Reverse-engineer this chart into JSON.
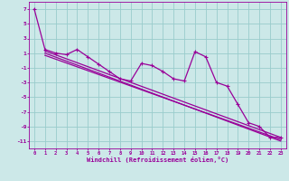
{
  "xlabel": "Windchill (Refroidissement éolien,°C)",
  "background_color": "#cce8e8",
  "grid_color": "#99cccc",
  "line_color": "#990099",
  "xlim": [
    -0.5,
    23.5
  ],
  "ylim": [
    -12,
    8
  ],
  "yticks": [
    -11,
    -9,
    -7,
    -5,
    -3,
    -1,
    1,
    3,
    5,
    7
  ],
  "xticks": [
    0,
    1,
    2,
    3,
    4,
    5,
    6,
    7,
    8,
    9,
    10,
    11,
    12,
    13,
    14,
    15,
    16,
    17,
    18,
    19,
    20,
    21,
    22,
    23
  ],
  "data_line": {
    "x": [
      0,
      1,
      2,
      3,
      4,
      5,
      6,
      7,
      8,
      9,
      10,
      11,
      12,
      13,
      14,
      15,
      16,
      17,
      18,
      19,
      20,
      21,
      22,
      23
    ],
    "y": [
      7.0,
      1.5,
      1.0,
      0.8,
      1.5,
      0.5,
      -0.5,
      -1.5,
      -2.5,
      -2.8,
      -0.4,
      -0.7,
      -1.5,
      -2.5,
      -2.8,
      1.2,
      0.5,
      -3.0,
      -3.5,
      -6.0,
      -8.5,
      -9.0,
      -10.5,
      -10.5
    ]
  },
  "trend_line1": {
    "x": [
      1,
      23
    ],
    "y": [
      1.3,
      -10.5
    ]
  },
  "trend_line2": {
    "x": [
      1,
      23
    ],
    "y": [
      1.0,
      -11.0
    ]
  },
  "trend_line3": {
    "x": [
      1,
      23
    ],
    "y": [
      0.7,
      -10.8
    ]
  },
  "marker": "+"
}
